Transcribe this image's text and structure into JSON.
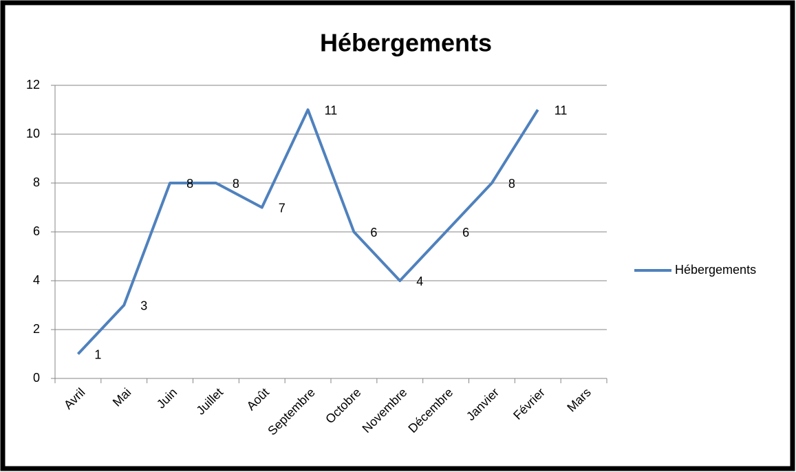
{
  "chart_data": {
    "type": "line",
    "title": "Hébergements",
    "categories": [
      "Avril",
      "Mai",
      "Juin",
      "Juillet",
      "Août",
      "Septembre",
      "Octobre",
      "Novembre",
      "Décembre",
      "Janvier",
      "Février",
      "Mars"
    ],
    "series": [
      {
        "name": "Hébergements",
        "color": "#4f81bd",
        "values": [
          1,
          3,
          8,
          8,
          7,
          11,
          6,
          4,
          6,
          8,
          11,
          null
        ]
      }
    ],
    "ylim": [
      0,
      12
    ],
    "yticks": [
      0,
      2,
      4,
      6,
      8,
      10,
      12
    ],
    "grid": true,
    "legend": "right",
    "data_labels": true
  }
}
